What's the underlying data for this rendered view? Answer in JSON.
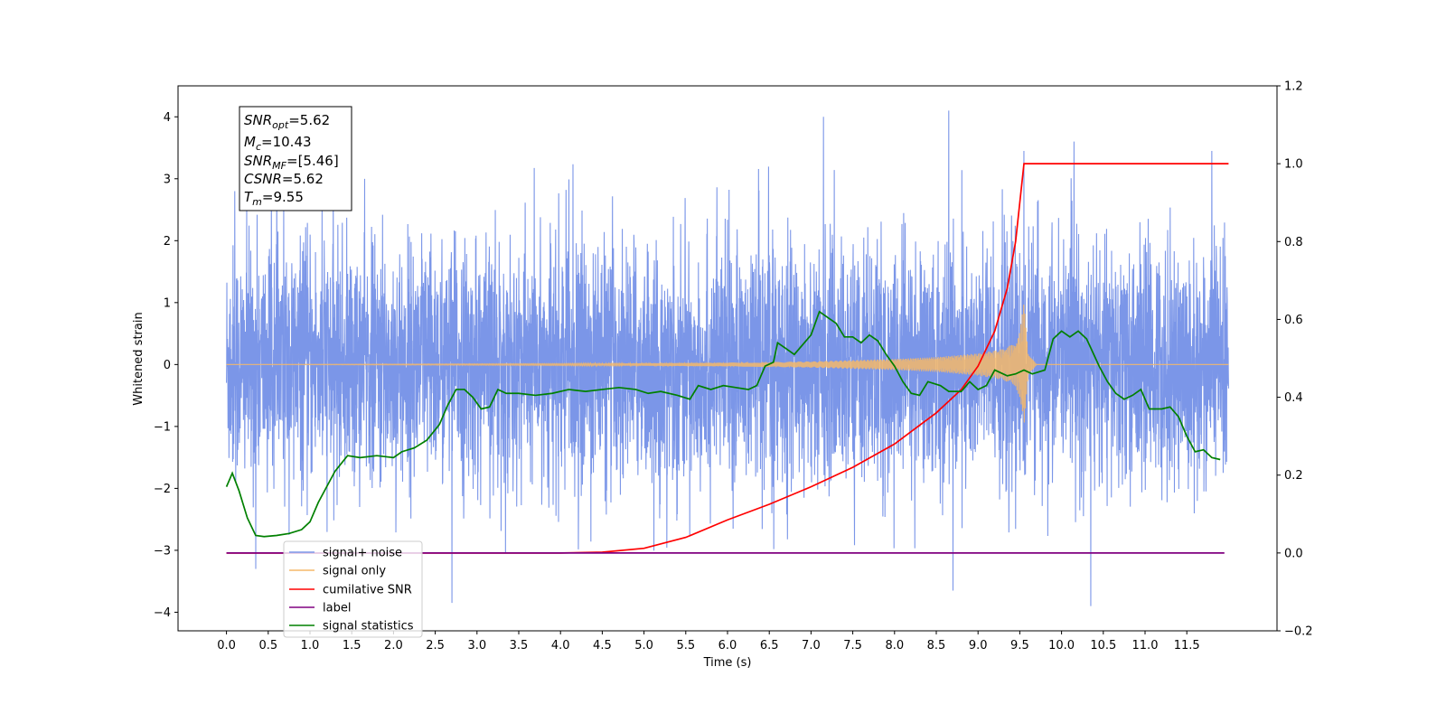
{
  "chart_data": {
    "type": "line",
    "xlabel": "Time (s)",
    "ylabel": "Whitened strain",
    "xlim": [
      -0.58,
      12.58
    ],
    "ylim": [
      -4.3,
      4.5
    ],
    "ylim_right": [
      -0.2,
      1.2
    ],
    "x_ticks": [
      "0.0",
      "0.5",
      "1.0",
      "1.5",
      "2.0",
      "2.5",
      "3.0",
      "3.5",
      "4.0",
      "4.5",
      "5.0",
      "5.5",
      "6.0",
      "6.5",
      "7.0",
      "7.5",
      "8.0",
      "8.5",
      "9.0",
      "9.5",
      "10.0",
      "10.5",
      "11.0",
      "11.5"
    ],
    "y_ticks_left": [
      "4",
      "3",
      "2",
      "1",
      "0",
      "−1",
      "−2",
      "−3",
      "−4"
    ],
    "y_ticks_right": [
      "1.2",
      "1.0",
      "0.8",
      "0.6",
      "0.4",
      "0.2",
      "0.0",
      "−0.2"
    ],
    "legend_location": "lower-left",
    "grid": false,
    "info_box": {
      "snr_opt": {
        "base": "SNR",
        "sub": "opt",
        "value": "=5.62"
      },
      "mc": {
        "base": "M",
        "sub": "c",
        "value": "=10.43"
      },
      "snr_mf": {
        "base": "SNR",
        "sub": "MF",
        "value": "=[5.46]"
      },
      "csnr": {
        "base": "CSNR",
        "sub": "",
        "value": "=5.62"
      },
      "tm": {
        "base": "T",
        "sub": "m",
        "value": "=9.55"
      }
    },
    "series": [
      {
        "name": "signal+ noise",
        "color": "#7b96e8",
        "axis": "left",
        "x_range": [
          0.0,
          12.0
        ],
        "noise_sigma": 1.0,
        "typical_range": [
          -2.2,
          2.6
        ],
        "extremes": [
          [
            0.1,
            2.8
          ],
          [
            0.35,
            -3.3
          ],
          [
            2.7,
            -3.85
          ],
          [
            7.15,
            4.0
          ],
          [
            8.65,
            4.1
          ],
          [
            8.7,
            -3.65
          ],
          [
            9.55,
            3.45
          ],
          [
            10.15,
            3.6
          ],
          [
            10.35,
            -3.9
          ],
          [
            11.8,
            3.45
          ]
        ]
      },
      {
        "name": "signal only",
        "color": "#f5b86a",
        "axis": "left",
        "x_range": [
          0.0,
          12.0
        ],
        "merger_time": 9.55,
        "envelope": [
          [
            0.0,
            0.0
          ],
          [
            4.0,
            0.01
          ],
          [
            6.0,
            0.03
          ],
          [
            7.0,
            0.05
          ],
          [
            8.0,
            0.09
          ],
          [
            8.5,
            0.12
          ],
          [
            9.0,
            0.18
          ],
          [
            9.3,
            0.25
          ],
          [
            9.45,
            0.35
          ],
          [
            9.5,
            0.55
          ],
          [
            9.55,
            1.0
          ],
          [
            9.6,
            0.2
          ],
          [
            9.7,
            0.0
          ],
          [
            12.0,
            0.0
          ]
        ]
      },
      {
        "name": "cumilative SNR",
        "color": "#ff0000",
        "axis": "right",
        "points": [
          [
            0.0,
            0.0
          ],
          [
            4.0,
            0.0
          ],
          [
            4.5,
            0.002
          ],
          [
            5.0,
            0.012
          ],
          [
            5.5,
            0.04
          ],
          [
            6.0,
            0.085
          ],
          [
            6.5,
            0.125
          ],
          [
            7.0,
            0.17
          ],
          [
            7.5,
            0.22
          ],
          [
            8.0,
            0.28
          ],
          [
            8.5,
            0.36
          ],
          [
            8.8,
            0.42
          ],
          [
            9.0,
            0.48
          ],
          [
            9.2,
            0.57
          ],
          [
            9.35,
            0.68
          ],
          [
            9.45,
            0.8
          ],
          [
            9.5,
            0.9
          ],
          [
            9.54,
            0.98
          ],
          [
            9.55,
            1.0
          ],
          [
            12.0,
            1.0
          ]
        ]
      },
      {
        "name": "label",
        "color": "#800080",
        "axis": "right",
        "points": [
          [
            0.0,
            0.0
          ],
          [
            11.95,
            0.0
          ]
        ]
      },
      {
        "name": "signal statistics",
        "color": "#008000",
        "axis": "right",
        "points": [
          [
            0.0,
            0.17
          ],
          [
            0.07,
            0.205
          ],
          [
            0.15,
            0.16
          ],
          [
            0.25,
            0.09
          ],
          [
            0.35,
            0.045
          ],
          [
            0.45,
            0.042
          ],
          [
            0.6,
            0.045
          ],
          [
            0.75,
            0.05
          ],
          [
            0.9,
            0.06
          ],
          [
            1.0,
            0.08
          ],
          [
            1.1,
            0.13
          ],
          [
            1.2,
            0.17
          ],
          [
            1.3,
            0.21
          ],
          [
            1.45,
            0.25
          ],
          [
            1.6,
            0.245
          ],
          [
            1.8,
            0.25
          ],
          [
            2.0,
            0.245
          ],
          [
            2.1,
            0.26
          ],
          [
            2.25,
            0.27
          ],
          [
            2.4,
            0.29
          ],
          [
            2.55,
            0.33
          ],
          [
            2.65,
            0.38
          ],
          [
            2.75,
            0.42
          ],
          [
            2.85,
            0.42
          ],
          [
            2.95,
            0.4
          ],
          [
            3.05,
            0.37
          ],
          [
            3.15,
            0.375
          ],
          [
            3.25,
            0.42
          ],
          [
            3.35,
            0.41
          ],
          [
            3.5,
            0.41
          ],
          [
            3.7,
            0.405
          ],
          [
            3.9,
            0.41
          ],
          [
            4.1,
            0.42
          ],
          [
            4.3,
            0.415
          ],
          [
            4.5,
            0.42
          ],
          [
            4.7,
            0.425
          ],
          [
            4.9,
            0.42
          ],
          [
            5.05,
            0.41
          ],
          [
            5.2,
            0.415
          ],
          [
            5.4,
            0.405
          ],
          [
            5.55,
            0.395
          ],
          [
            5.65,
            0.43
          ],
          [
            5.8,
            0.42
          ],
          [
            5.95,
            0.43
          ],
          [
            6.1,
            0.425
          ],
          [
            6.25,
            0.42
          ],
          [
            6.35,
            0.43
          ],
          [
            6.45,
            0.48
          ],
          [
            6.55,
            0.49
          ],
          [
            6.6,
            0.54
          ],
          [
            6.7,
            0.525
          ],
          [
            6.8,
            0.51
          ],
          [
            6.9,
            0.535
          ],
          [
            7.0,
            0.56
          ],
          [
            7.1,
            0.62
          ],
          [
            7.2,
            0.605
          ],
          [
            7.3,
            0.59
          ],
          [
            7.4,
            0.555
          ],
          [
            7.5,
            0.555
          ],
          [
            7.6,
            0.54
          ],
          [
            7.7,
            0.56
          ],
          [
            7.8,
            0.545
          ],
          [
            7.9,
            0.51
          ],
          [
            8.0,
            0.48
          ],
          [
            8.1,
            0.44
          ],
          [
            8.2,
            0.41
          ],
          [
            8.3,
            0.405
          ],
          [
            8.4,
            0.44
          ],
          [
            8.55,
            0.43
          ],
          [
            8.65,
            0.415
          ],
          [
            8.8,
            0.415
          ],
          [
            8.9,
            0.44
          ],
          [
            9.0,
            0.42
          ],
          [
            9.1,
            0.43
          ],
          [
            9.2,
            0.47
          ],
          [
            9.35,
            0.455
          ],
          [
            9.45,
            0.46
          ],
          [
            9.55,
            0.47
          ],
          [
            9.65,
            0.46
          ],
          [
            9.8,
            0.47
          ],
          [
            9.9,
            0.55
          ],
          [
            10.0,
            0.57
          ],
          [
            10.1,
            0.555
          ],
          [
            10.2,
            0.57
          ],
          [
            10.3,
            0.55
          ],
          [
            10.45,
            0.48
          ],
          [
            10.55,
            0.44
          ],
          [
            10.65,
            0.41
          ],
          [
            10.75,
            0.395
          ],
          [
            10.85,
            0.405
          ],
          [
            10.95,
            0.42
          ],
          [
            11.05,
            0.37
          ],
          [
            11.2,
            0.37
          ],
          [
            11.3,
            0.375
          ],
          [
            11.4,
            0.35
          ],
          [
            11.5,
            0.3
          ],
          [
            11.6,
            0.26
          ],
          [
            11.7,
            0.265
          ],
          [
            11.8,
            0.245
          ],
          [
            11.9,
            0.24
          ]
        ]
      }
    ]
  }
}
